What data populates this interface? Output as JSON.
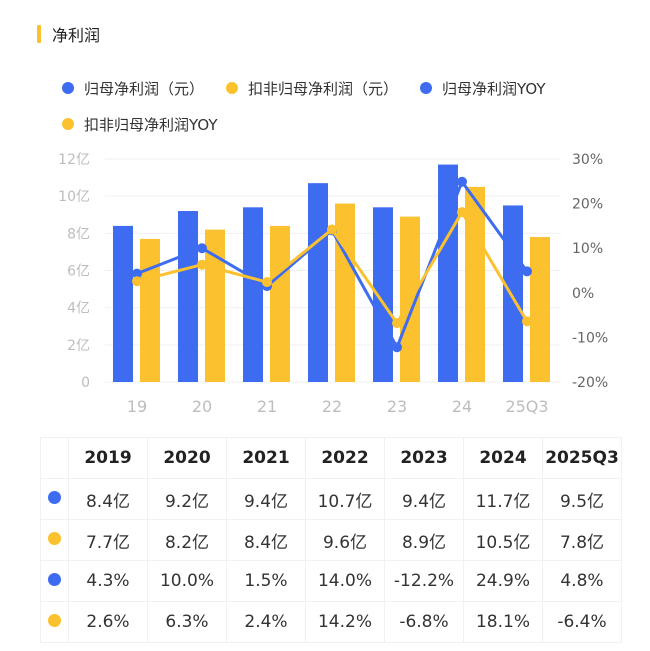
{
  "title": "净利润",
  "colors": {
    "blue": "#3d6cf0",
    "yellow": "#fbc12e"
  },
  "legend": [
    {
      "label": "归母净利润（元）",
      "color": "#3d6cf0"
    },
    {
      "label": "扣非归母净利润（元）",
      "color": "#fbc12e"
    },
    {
      "label": "归母净利润YOY",
      "color": "#3d6cf0"
    },
    {
      "label": "扣非归母净利润YOY",
      "color": "#fbc12e"
    }
  ],
  "chart_data": {
    "type": "bar+line",
    "categories": [
      "19",
      "20",
      "21",
      "22",
      "23",
      "24",
      "25Q3"
    ],
    "left_axis": {
      "ticks": [
        "0",
        "2亿",
        "4亿",
        "6亿",
        "8亿",
        "10亿",
        "12亿"
      ],
      "range": [
        0,
        12
      ],
      "unit": "亿"
    },
    "right_axis": {
      "ticks": [
        "-20%",
        "-10%",
        "0%",
        "10%",
        "20%",
        "30%"
      ],
      "range": [
        -20,
        30
      ]
    },
    "grid": true,
    "legend_position": "top",
    "series": [
      {
        "name": "归母净利润（元）",
        "type": "bar",
        "axis": "left",
        "color": "#3d6cf0",
        "values": [
          8.4,
          9.2,
          9.4,
          10.7,
          9.4,
          11.7,
          9.5
        ]
      },
      {
        "name": "扣非归母净利润（元）",
        "type": "bar",
        "axis": "left",
        "color": "#fbc12e",
        "values": [
          7.7,
          8.2,
          8.4,
          9.6,
          8.9,
          10.5,
          7.8
        ]
      },
      {
        "name": "归母净利润YOY",
        "type": "line",
        "axis": "right",
        "color": "#3d6cf0",
        "values": [
          4.3,
          10.0,
          1.5,
          14.0,
          -12.2,
          24.9,
          4.8
        ]
      },
      {
        "name": "扣非归母净利润YOY",
        "type": "line",
        "axis": "right",
        "color": "#fbc12e",
        "values": [
          2.6,
          6.3,
          2.4,
          14.2,
          -6.8,
          18.1,
          -6.4
        ]
      }
    ]
  },
  "table": {
    "headers": [
      "2019",
      "2020",
      "2021",
      "2022",
      "2023",
      "2024",
      "2025Q3"
    ],
    "rows": [
      {
        "color": "#3d6cf0",
        "cells": [
          "8.4亿",
          "9.2亿",
          "9.4亿",
          "10.7亿",
          "9.4亿",
          "11.7亿",
          "9.5亿"
        ]
      },
      {
        "color": "#fbc12e",
        "cells": [
          "7.7亿",
          "8.2亿",
          "8.4亿",
          "9.6亿",
          "8.9亿",
          "10.5亿",
          "7.8亿"
        ]
      },
      {
        "color": "#3d6cf0",
        "cells": [
          "4.3%",
          "10.0%",
          "1.5%",
          "14.0%",
          "-12.2%",
          "24.9%",
          "4.8%"
        ]
      },
      {
        "color": "#fbc12e",
        "cells": [
          "2.6%",
          "6.3%",
          "2.4%",
          "14.2%",
          "-6.8%",
          "18.1%",
          "-6.4%"
        ]
      }
    ]
  }
}
